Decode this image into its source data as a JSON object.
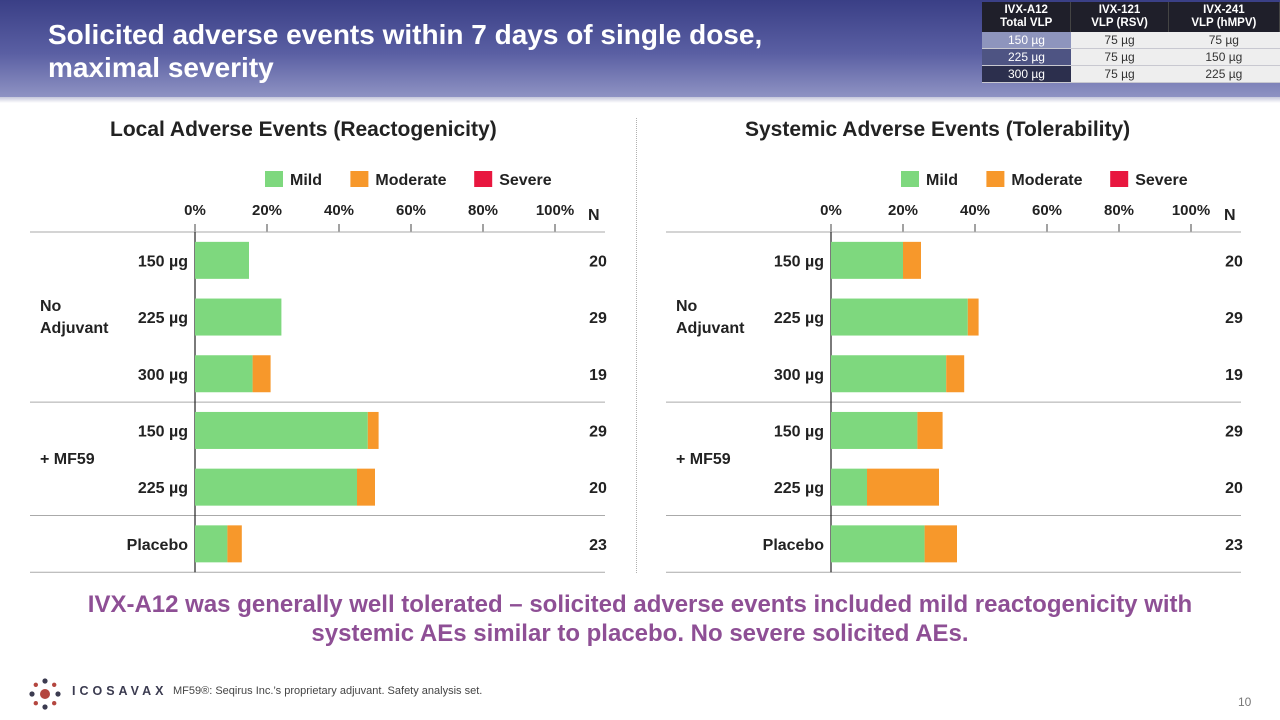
{
  "slide": {
    "title_line1": "Solicited adverse events within 7 days of single dose,",
    "title_line2": "maximal severity",
    "summary_line1": "IVX-A12 was generally well tolerated – solicited adverse events included mild reactogenicity with",
    "summary_line2": "systemic AEs similar to placebo. No severe solicited AEs.",
    "footnote": "MF59®: Seqirus Inc.’s proprietary adjuvant. Safety analysis set.",
    "logo_text": "ICOSAVAX",
    "page_number": "10"
  },
  "dose_table": {
    "headers": [
      [
        "IVX-A12",
        "Total VLP"
      ],
      [
        "IVX-121",
        "VLP (RSV)"
      ],
      [
        "IVX-241",
        "VLP (hMPV)"
      ]
    ],
    "rows": [
      [
        "150 µg",
        "75 µg",
        "75 µg"
      ],
      [
        "225 µg",
        "75 µg",
        "150 µg"
      ],
      [
        "300 µg",
        "75 µg",
        "225 µg"
      ]
    ]
  },
  "colors": {
    "mild": "#7ed87e",
    "moderate": "#f7982b",
    "severe": "#e8173f"
  },
  "chart_data": [
    {
      "type": "bar",
      "orientation": "horizontal-stacked",
      "title": "Local Adverse Events (Reactogenicity)",
      "legend": [
        "Mild",
        "Moderate",
        "Severe"
      ],
      "x_ticks": [
        "0%",
        "20%",
        "40%",
        "60%",
        "80%",
        "100%"
      ],
      "xlim": [
        0,
        100
      ],
      "n_header": "N",
      "groups": [
        {
          "label": [
            "No",
            "Adjuvant"
          ],
          "rows": [
            0,
            1,
            2
          ]
        },
        {
          "label": [
            "+ MF59"
          ],
          "rows": [
            3,
            4
          ]
        },
        {
          "label": [],
          "rows": [
            5
          ]
        }
      ],
      "categories": [
        "150 µg",
        "225 µg",
        "300 µg",
        "150 µg",
        "225 µg",
        "Placebo"
      ],
      "n": [
        "20",
        "29",
        "19",
        "29",
        "20",
        "23"
      ],
      "series": [
        {
          "name": "Mild",
          "values": [
            15,
            24,
            16,
            48,
            45,
            9
          ]
        },
        {
          "name": "Moderate",
          "values": [
            0,
            0,
            5,
            3,
            5,
            4
          ]
        },
        {
          "name": "Severe",
          "values": [
            0,
            0,
            0,
            0,
            0,
            0
          ]
        }
      ]
    },
    {
      "type": "bar",
      "orientation": "horizontal-stacked",
      "title": "Systemic Adverse Events (Tolerability)",
      "legend": [
        "Mild",
        "Moderate",
        "Severe"
      ],
      "x_ticks": [
        "0%",
        "20%",
        "40%",
        "60%",
        "80%",
        "100%"
      ],
      "xlim": [
        0,
        100
      ],
      "n_header": "N",
      "groups": [
        {
          "label": [
            "No",
            "Adjuvant"
          ],
          "rows": [
            0,
            1,
            2
          ]
        },
        {
          "label": [
            "+ MF59"
          ],
          "rows": [
            3,
            4
          ]
        },
        {
          "label": [],
          "rows": [
            5
          ]
        }
      ],
      "categories": [
        "150 µg",
        "225 µg",
        "300 µg",
        "150 µg",
        "225 µg",
        "Placebo"
      ],
      "n": [
        "20",
        "29",
        "19",
        "29",
        "20",
        "23"
      ],
      "series": [
        {
          "name": "Mild",
          "values": [
            20,
            38,
            32,
            24,
            10,
            26
          ]
        },
        {
          "name": "Moderate",
          "values": [
            5,
            3,
            5,
            7,
            20,
            9
          ]
        },
        {
          "name": "Severe",
          "values": [
            0,
            0,
            0,
            0,
            0,
            0
          ]
        }
      ]
    }
  ]
}
